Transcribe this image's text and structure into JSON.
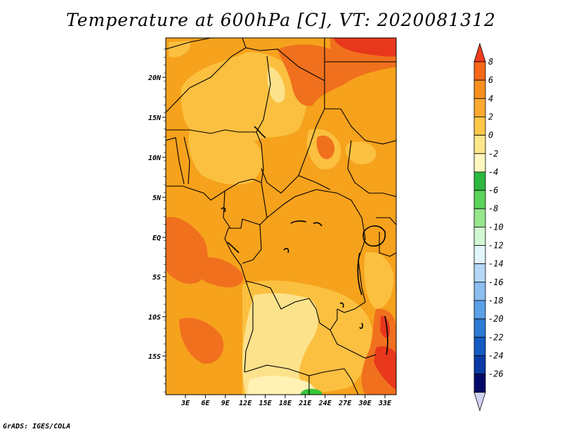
{
  "title": "Temperature at 600hPa [C], VT: 2020081312",
  "footer": "GrADS: IGES/COLA",
  "colors": {
    "land_base": "#f6a21c",
    "warm": "#fbc040",
    "cool": "#fde28c",
    "hot": "#f0701e",
    "hottest": "#e8371c",
    "green": "#3ac43a"
  },
  "map": {
    "lat_labels": [
      "20N",
      "15N",
      "10N",
      "5N",
      "EQ",
      "5S",
      "10S",
      "15S"
    ],
    "lon_labels": [
      "3E",
      "6E",
      "9E",
      "12E",
      "15E",
      "18E",
      "21E",
      "24E",
      "27E",
      "30E",
      "33E"
    ]
  },
  "colorbar": {
    "levels": [
      "8",
      "6",
      "4",
      "2",
      "0",
      "-2",
      "-4",
      "-6",
      "-8",
      "-10",
      "-12",
      "-14",
      "-16",
      "-18",
      "-20",
      "-22",
      "-24",
      "-26"
    ],
    "colors": [
      "#f03c1e",
      "#f86818",
      "#f7901e",
      "#fbaa30",
      "#fcc848",
      "#fde68c",
      "#fff8c0",
      "#2cb840",
      "#5cd35c",
      "#96e68c",
      "#d2f8d2",
      "#e2f6fb",
      "#b4d8f6",
      "#8cbef0",
      "#5ca0e8",
      "#2e7ad6",
      "#145ac4",
      "#0a3aa4",
      "#050a6a",
      "#d2d2f2"
    ]
  }
}
